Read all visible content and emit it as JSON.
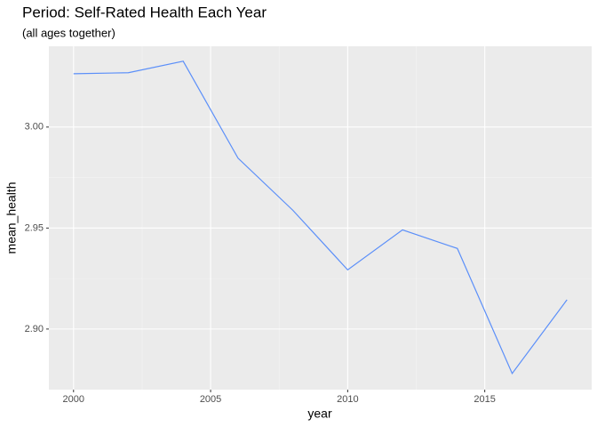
{
  "chart_data": {
    "type": "line",
    "title": "Period: Self-Rated Health Each Year",
    "subtitle": "(all ages together)",
    "x_label": "year",
    "y_label": "mean_health",
    "x": [
      2000,
      2002,
      2004,
      2006,
      2008,
      2010,
      2012,
      2014,
      2016,
      2018
    ],
    "series": [
      {
        "name": "mean_health",
        "color": "#5b8ff9",
        "values": [
          3.0264,
          3.0269,
          3.0326,
          2.9846,
          2.9588,
          2.9293,
          2.9491,
          2.9399,
          2.878,
          2.9145
        ]
      }
    ],
    "xlim": [
      1999.1,
      2018.9
    ],
    "xticks": [
      2000,
      2005,
      2010,
      2015
    ],
    "ylim": [
      2.87,
      3.04
    ],
    "yticks": [
      {
        "value": 2.9,
        "label": "2.90"
      },
      {
        "value": 2.95,
        "label": "2.95"
      },
      {
        "value": 3,
        "label": "3.00"
      }
    ],
    "grid": true
  }
}
